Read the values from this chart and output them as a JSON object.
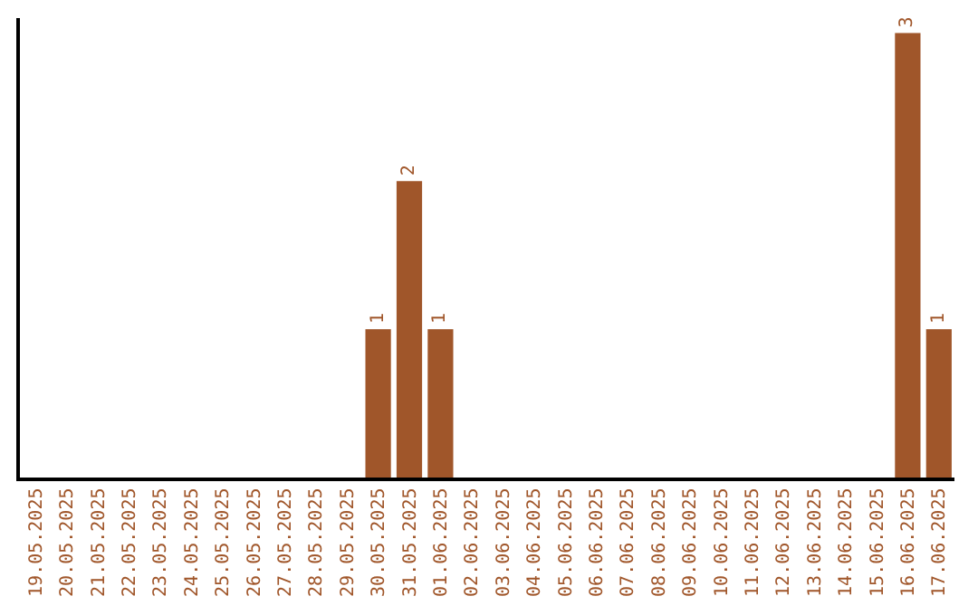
{
  "chart_data": {
    "type": "bar",
    "categories": [
      "19.05.2025",
      "20.05.2025",
      "21.05.2025",
      "22.05.2025",
      "23.05.2025",
      "24.05.2025",
      "25.05.2025",
      "26.05.2025",
      "27.05.2025",
      "28.05.2025",
      "29.05.2025",
      "30.05.2025",
      "31.05.2025",
      "01.06.2025",
      "02.06.2025",
      "03.06.2025",
      "04.06.2025",
      "05.06.2025",
      "06.06.2025",
      "07.06.2025",
      "08.06.2025",
      "09.06.2025",
      "10.06.2025",
      "11.06.2025",
      "12.06.2025",
      "13.06.2025",
      "14.06.2025",
      "15.06.2025",
      "16.06.2025",
      "17.06.2025"
    ],
    "values": [
      0,
      0,
      0,
      0,
      0,
      0,
      0,
      0,
      0,
      0,
      0,
      1,
      2,
      1,
      0,
      0,
      0,
      0,
      0,
      0,
      0,
      0,
      0,
      0,
      0,
      0,
      0,
      0,
      3,
      1
    ],
    "value_labels": [
      null,
      null,
      null,
      null,
      null,
      null,
      null,
      null,
      null,
      null,
      null,
      "1",
      "2",
      "1",
      null,
      null,
      null,
      null,
      null,
      null,
      null,
      null,
      null,
      null,
      null,
      null,
      null,
      null,
      "3",
      "1"
    ],
    "color": "#a0562a",
    "ylim": [
      0,
      3.1
    ],
    "tick_labels": "x"
  }
}
